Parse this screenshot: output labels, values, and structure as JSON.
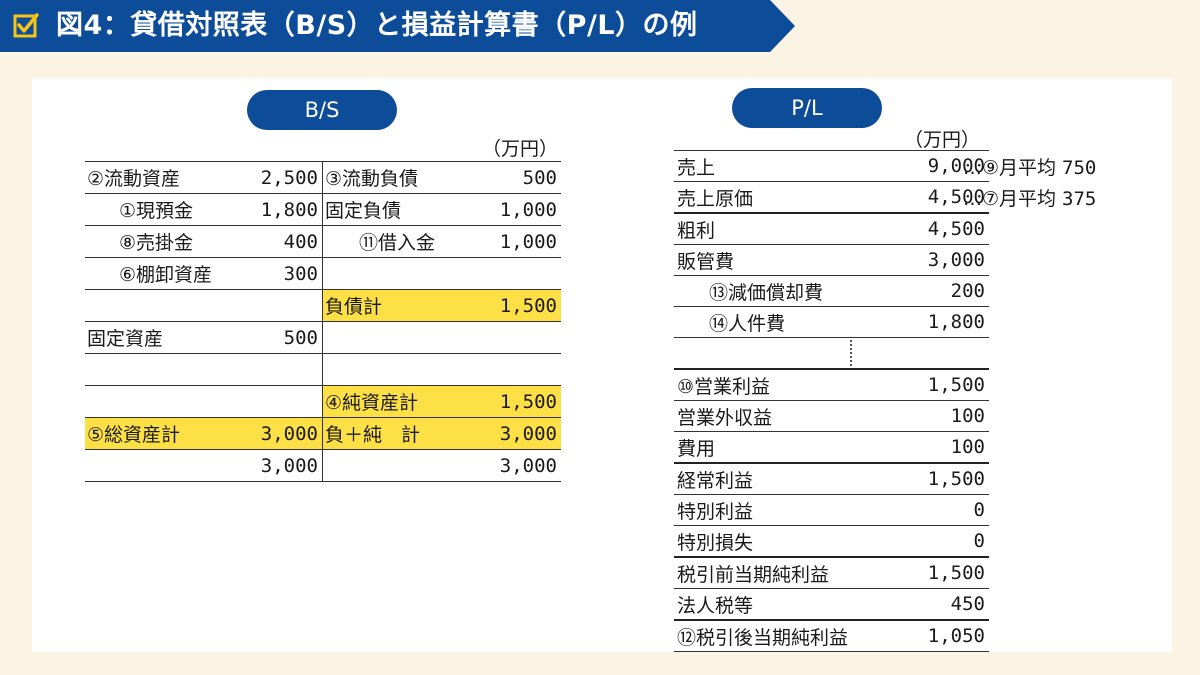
{
  "header": {
    "title": "図4：貸借対照表（B/S）と損益計算書（P/L）の例"
  },
  "bs": {
    "pill": "B/S",
    "unit": "（万円）",
    "rows": [
      {
        "l_label": "②流動資産",
        "l_value": "2,500",
        "r_label": "③流動負債",
        "r_value": "500"
      },
      {
        "l_label": "①現預金",
        "l_value": "1,800",
        "r_label": "固定負債",
        "r_value": "1,000"
      },
      {
        "l_label": "⑧売掛金",
        "l_value": "400",
        "r_label": "⑪借入金",
        "r_value": "1,000"
      },
      {
        "l_label": "⑥棚卸資産",
        "l_value": "300",
        "r_label": "",
        "r_value": ""
      },
      {
        "l_label": "",
        "l_value": "",
        "r_label": "負債計",
        "r_value": "1,500"
      },
      {
        "l_label": "固定資産",
        "l_value": "500",
        "r_label": "",
        "r_value": ""
      },
      {
        "l_label": "",
        "l_value": "",
        "r_label": "",
        "r_value": ""
      },
      {
        "l_label": "",
        "l_value": "",
        "r_label": "④純資産計",
        "r_value": "1,500"
      },
      {
        "l_label": "⑤総資産計",
        "l_value": "3,000",
        "r_label": "負＋純　計",
        "r_value": "3,000"
      },
      {
        "l_label": "",
        "l_value": "3,000",
        "r_label": "",
        "r_value": "3,000"
      }
    ],
    "highlight_color": "#fde046"
  },
  "pl": {
    "pill": "P/L",
    "unit": "（万円）",
    "rows": [
      {
        "label": "売上",
        "value": "9,000"
      },
      {
        "label": "売上原価",
        "value": "4,500"
      },
      {
        "label": "粗利",
        "value": "4,500"
      },
      {
        "label": "販管費",
        "value": "3,000"
      },
      {
        "label": "⑬減価償却費",
        "value": "200"
      },
      {
        "label": "⑭人件費",
        "value": "1,800"
      },
      {
        "label": "",
        "value": ""
      },
      {
        "label": "⑩営業利益",
        "value": "1,500"
      },
      {
        "label": "営業外収益",
        "value": "100"
      },
      {
        "label": "費用",
        "value": "100"
      },
      {
        "label": "経常利益",
        "value": "1,500"
      },
      {
        "label": "特別利益",
        "value": "0"
      },
      {
        "label": "特別損失",
        "value": "0"
      },
      {
        "label": "税引前当期純利益",
        "value": "1,500"
      },
      {
        "label": "法人税等",
        "value": "450"
      },
      {
        "label": "⑫税引後当期純利益",
        "value": "1,050"
      }
    ],
    "annotations": [
      {
        "label": "…⑨月平均",
        "value": "750"
      },
      {
        "label": "…⑦月平均",
        "value": "375"
      }
    ]
  },
  "colors": {
    "banner": "#0d4c99",
    "background": "#fbf3e4",
    "check_icon": "#f5c518"
  }
}
